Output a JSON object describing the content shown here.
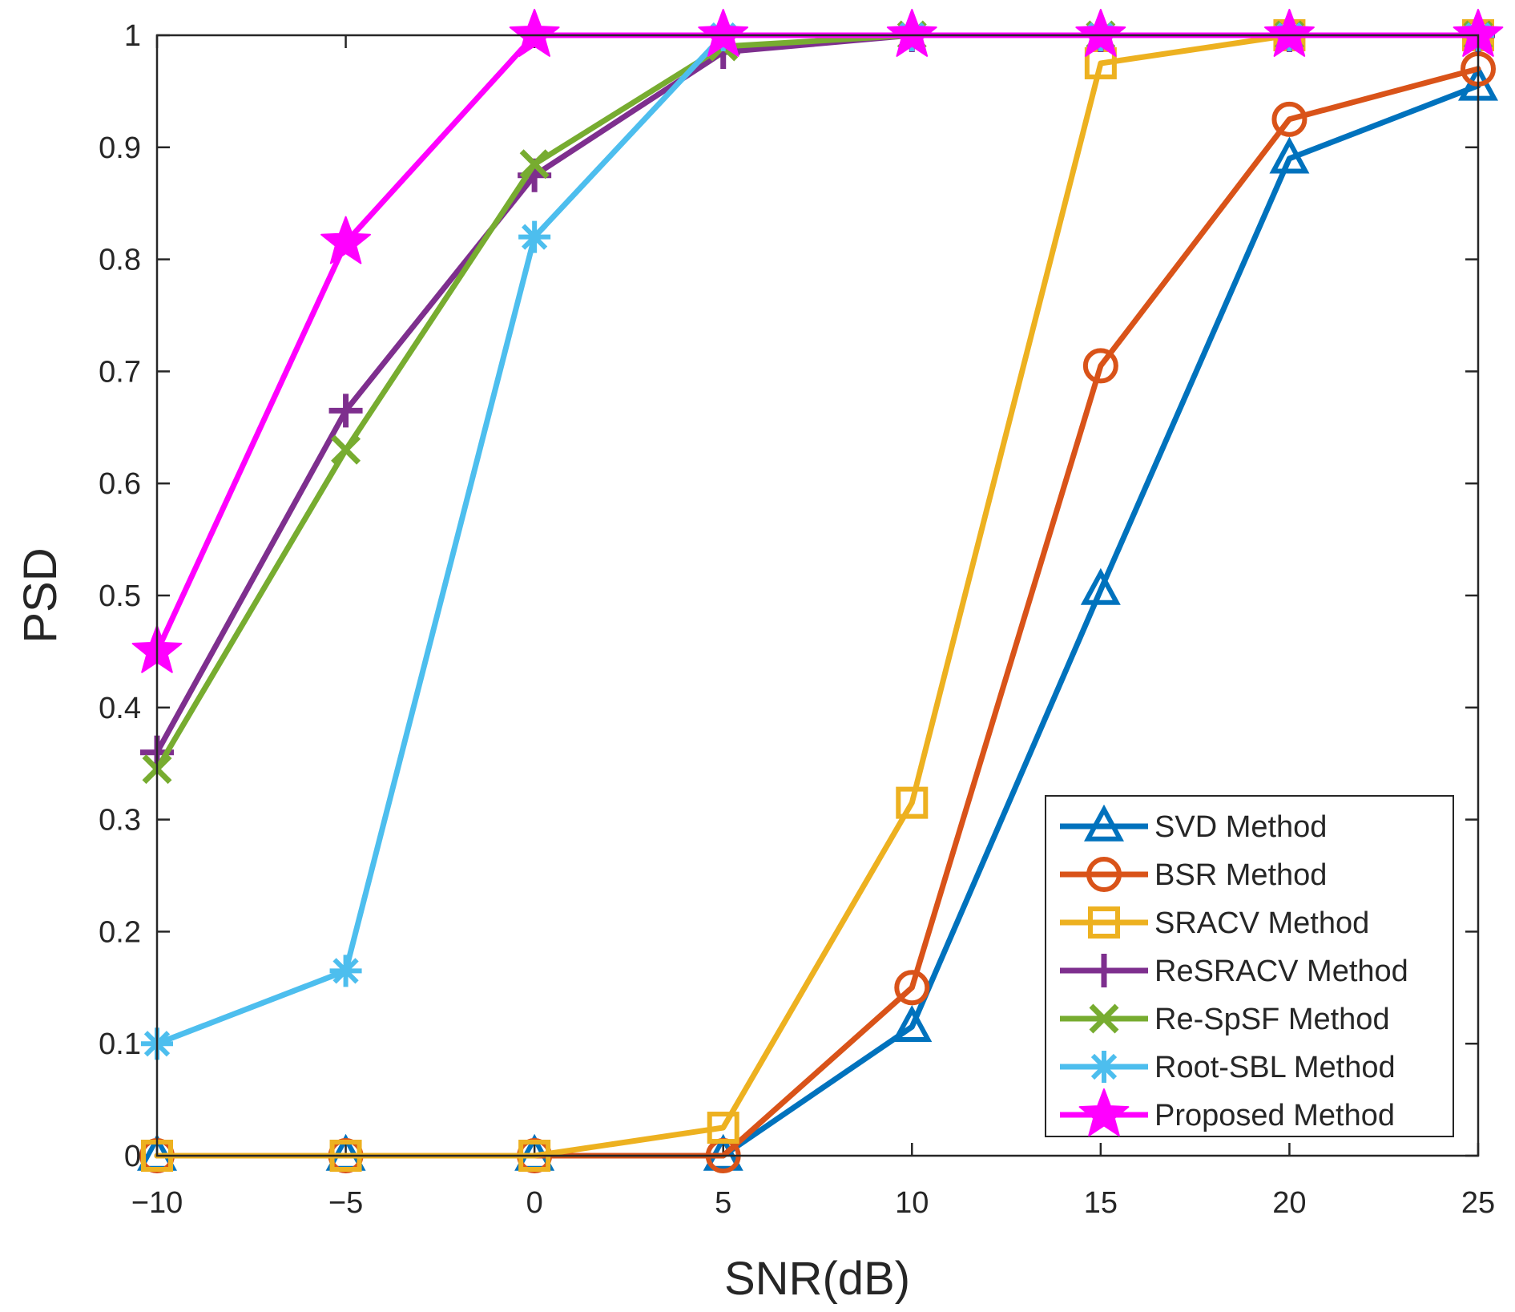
{
  "chart_data": {
    "type": "line",
    "title": "",
    "xlabel": "SNR(dB)",
    "ylabel": "PSD",
    "x": [
      -10,
      -5,
      0,
      5,
      10,
      15,
      20,
      25
    ],
    "xlim": [
      -10,
      25
    ],
    "ylim": [
      0,
      1
    ],
    "xticks": [
      -10,
      -5,
      0,
      5,
      10,
      15,
      20,
      25
    ],
    "xtick_labels": [
      "−10",
      "−5",
      "0",
      "5",
      "10",
      "15",
      "20",
      "25"
    ],
    "yticks": [
      0,
      0.1,
      0.2,
      0.3,
      0.4,
      0.5,
      0.6,
      0.7,
      0.8,
      0.9,
      1
    ],
    "ytick_labels": [
      "0",
      "0.1",
      "0.2",
      "0.3",
      "0.4",
      "0.5",
      "0.6",
      "0.7",
      "0.8",
      "0.9",
      "1"
    ],
    "grid": false,
    "legend_position": "bottom-right",
    "series": [
      {
        "name": "SVD Method",
        "color": "#0072BD",
        "marker": "triangle",
        "values": [
          0,
          0,
          0,
          0,
          0.115,
          0.505,
          0.89,
          0.955
        ]
      },
      {
        "name": "BSR Method",
        "color": "#D95319",
        "marker": "circle",
        "values": [
          0,
          0,
          0,
          0,
          0.15,
          0.705,
          0.925,
          0.97
        ]
      },
      {
        "name": "SRACV Method",
        "color": "#EDB120",
        "marker": "square",
        "values": [
          0,
          0,
          0,
          0.025,
          0.315,
          0.975,
          1,
          1
        ]
      },
      {
        "name": "ReSRACV Method",
        "color": "#7E2F8E",
        "marker": "plus",
        "values": [
          0.36,
          0.665,
          0.875,
          0.985,
          1,
          1,
          1,
          1
        ]
      },
      {
        "name": "Re-SpSF Method",
        "color": "#77AC30",
        "marker": "x",
        "values": [
          0.345,
          0.63,
          0.885,
          0.99,
          1,
          1,
          1,
          1
        ]
      },
      {
        "name": "Root-SBL Method",
        "color": "#4DBEEE",
        "marker": "asterisk",
        "values": [
          0.1,
          0.165,
          0.82,
          1,
          1,
          1,
          1,
          1
        ]
      },
      {
        "name": "Proposed Method",
        "color": "#FF00FF",
        "marker": "star",
        "values": [
          0.45,
          0.815,
          1,
          1,
          1,
          1,
          1,
          1
        ]
      }
    ]
  }
}
